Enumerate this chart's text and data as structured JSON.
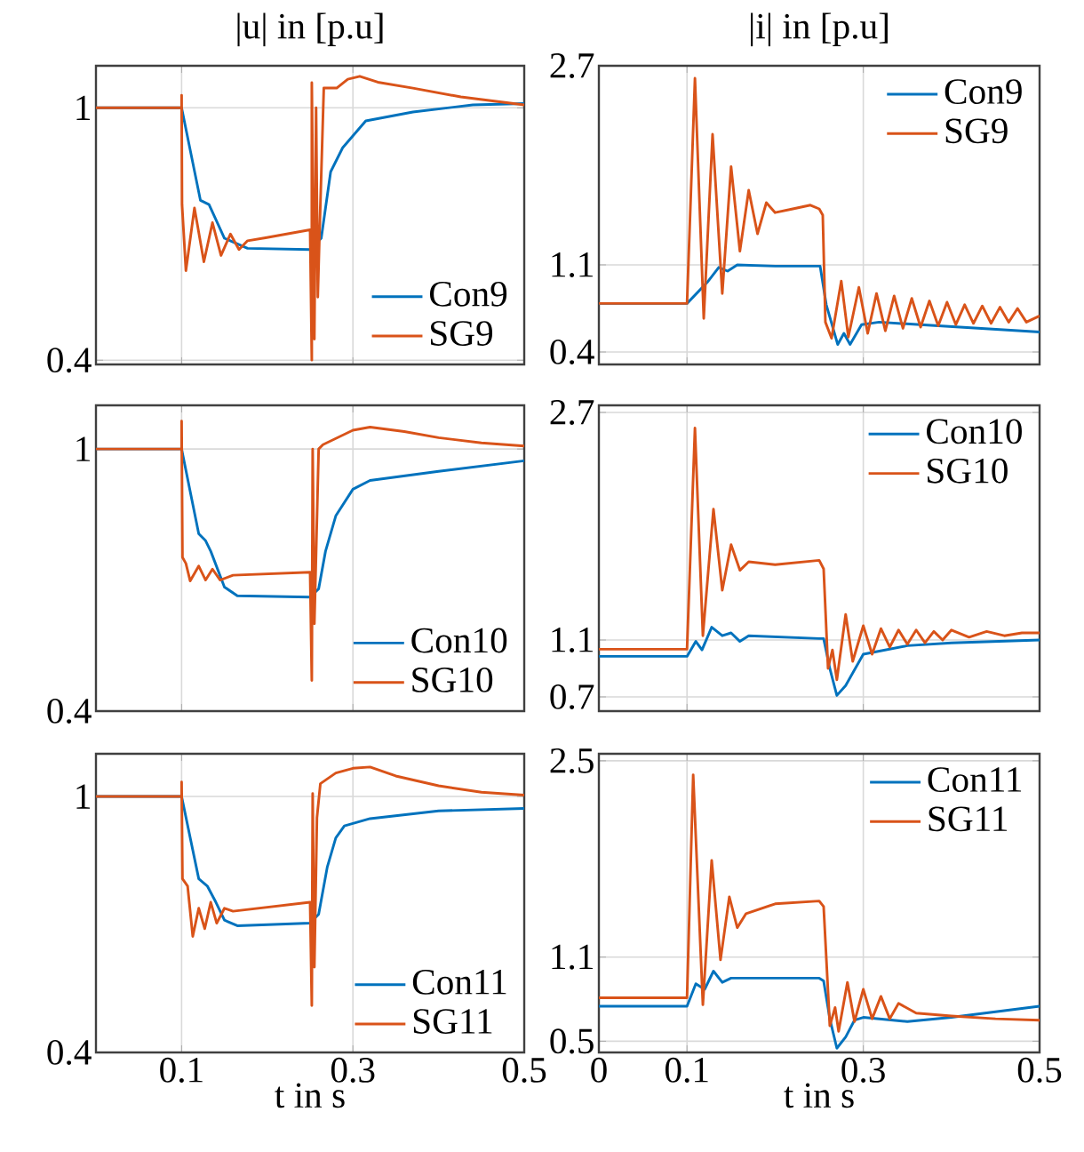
{
  "chart_data": [
    {
      "type": "line",
      "title": "|u| in [p.u]",
      "xlim": [
        0,
        0.5
      ],
      "ylim": [
        0.39,
        1.1
      ],
      "xticks": [
        0.1,
        0.3,
        0.5
      ],
      "yticks": [
        0.4,
        1
      ],
      "tick_labels": "y",
      "grid": true,
      "legend": "bottom right",
      "series": [
        {
          "name": "Con9",
          "color": "#0072bd",
          "x": [
            0,
            0.1,
            0.122,
            0.132,
            0.15,
            0.177,
            0.25,
            0.263,
            0.274,
            0.288,
            0.315,
            0.37,
            0.44,
            0.5
          ],
          "values": [
            1,
            1,
            0.78,
            0.77,
            0.69,
            0.666,
            0.663,
            0.69,
            0.848,
            0.905,
            0.969,
            0.99,
            1.007,
            1.01
          ]
        },
        {
          "name": "SG9",
          "color": "#d95319",
          "x": [
            0,
            0.1,
            0.1,
            0.1005,
            0.105,
            0.115,
            0.126,
            0.136,
            0.146,
            0.157,
            0.167,
            0.177,
            0.198,
            0.25,
            0.252,
            0.252,
            0.255,
            0.257,
            0.259,
            0.261,
            0.266,
            0.281,
            0.294,
            0.308,
            0.329,
            0.37,
            0.426,
            0.5
          ],
          "values": [
            1,
            1,
            1.03,
            0.77,
            0.613,
            0.762,
            0.634,
            0.727,
            0.649,
            0.7,
            0.663,
            0.684,
            0.691,
            0.71,
            0.4,
            1.06,
            0.45,
            1.0,
            0.55,
            0.7,
            1.047,
            1.047,
            1.068,
            1.075,
            1.061,
            1.047,
            1.026,
            1.007
          ]
        }
      ]
    },
    {
      "type": "line",
      "title": "|i| in [p.u]",
      "xlim": [
        0,
        0.5
      ],
      "ylim": [
        0.3,
        2.7
      ],
      "xticks": [
        0.1,
        0.3,
        0.5
      ],
      "yticks": [
        0.4,
        1.1,
        2.7
      ],
      "tick_labels": "y",
      "grid": true,
      "legend": "top right",
      "series": [
        {
          "name": "Con9",
          "color": "#0072bd",
          "x": [
            0,
            0.1,
            0.123,
            0.136,
            0.146,
            0.157,
            0.2,
            0.251,
            0.258,
            0.271,
            0.278,
            0.285,
            0.298,
            0.318,
            0.385,
            0.5
          ],
          "values": [
            0.79,
            0.79,
            0.96,
            1.08,
            1.05,
            1.1,
            1.09,
            1.09,
            0.78,
            0.46,
            0.55,
            0.46,
            0.62,
            0.64,
            0.61,
            0.56
          ]
        },
        {
          "name": "SG9",
          "color": "#d95319",
          "x": [
            0,
            0.1,
            0.109,
            0.119,
            0.129,
            0.14,
            0.15,
            0.16,
            0.17,
            0.18,
            0.19,
            0.2,
            0.22,
            0.24,
            0.25,
            0.254,
            0.257,
            0.264,
            0.275,
            0.283,
            0.295,
            0.305,
            0.315,
            0.325,
            0.335,
            0.345,
            0.355,
            0.365,
            0.375,
            0.385,
            0.395,
            0.405,
            0.415,
            0.425,
            0.435,
            0.445,
            0.455,
            0.465,
            0.475,
            0.485,
            0.5
          ],
          "values": [
            0.79,
            0.79,
            2.6,
            0.67,
            2.15,
            0.87,
            1.89,
            1.21,
            1.7,
            1.35,
            1.6,
            1.52,
            1.55,
            1.58,
            1.55,
            1.5,
            0.64,
            0.51,
            0.97,
            0.52,
            0.92,
            0.55,
            0.87,
            0.57,
            0.85,
            0.59,
            0.83,
            0.6,
            0.81,
            0.61,
            0.8,
            0.62,
            0.78,
            0.63,
            0.77,
            0.63,
            0.76,
            0.64,
            0.75,
            0.64,
            0.69
          ]
        }
      ]
    },
    {
      "type": "line",
      "xlim": [
        0,
        0.5
      ],
      "ylim": [
        0.4,
        1.1
      ],
      "xticks": [
        0.1,
        0.3,
        0.5
      ],
      "yticks": [
        0.4,
        1
      ],
      "tick_labels": "y",
      "grid": true,
      "legend": "bottom right",
      "series": [
        {
          "name": "Con10",
          "color": "#0072bd",
          "x": [
            0,
            0.1,
            0.12,
            0.128,
            0.134,
            0.15,
            0.165,
            0.25,
            0.26,
            0.268,
            0.28,
            0.3,
            0.32,
            0.4,
            0.5
          ],
          "values": [
            1,
            1,
            0.806,
            0.79,
            0.766,
            0.684,
            0.664,
            0.661,
            0.68,
            0.766,
            0.847,
            0.908,
            0.928,
            0.949,
            0.973
          ]
        },
        {
          "name": "SG10",
          "color": "#d95319",
          "x": [
            0,
            0.1,
            0.1,
            0.101,
            0.105,
            0.11,
            0.12,
            0.128,
            0.136,
            0.145,
            0.16,
            0.25,
            0.252,
            0.253,
            0.255,
            0.26,
            0.265,
            0.3,
            0.32,
            0.36,
            0.4,
            0.45,
            0.5
          ],
          "values": [
            1,
            1,
            1.064,
            0.752,
            0.738,
            0.698,
            0.732,
            0.7,
            0.725,
            0.7,
            0.711,
            0.718,
            0.47,
            1.0,
            0.6,
            1.0,
            1.01,
            1.043,
            1.05,
            1.04,
            1.026,
            1.014,
            1.007
          ]
        }
      ]
    },
    {
      "type": "line",
      "xlim": [
        0,
        0.5
      ],
      "ylim": [
        0.6,
        2.75
      ],
      "xticks": [
        0.1,
        0.3,
        0.5
      ],
      "yticks": [
        0.7,
        1.1,
        2.7
      ],
      "tick_labels": "y",
      "grid": true,
      "legend": "top right",
      "series": [
        {
          "name": "Con10",
          "color": "#0072bd",
          "x": [
            0,
            0.1,
            0.11,
            0.117,
            0.128,
            0.14,
            0.15,
            0.16,
            0.17,
            0.25,
            0.255,
            0.262,
            0.27,
            0.28,
            0.3,
            0.35,
            0.4,
            0.5
          ],
          "values": [
            0.985,
            0.985,
            1.09,
            1.03,
            1.19,
            1.13,
            1.15,
            1.09,
            1.13,
            1.11,
            1.11,
            0.9,
            0.71,
            0.78,
            1.0,
            1.06,
            1.08,
            1.1
          ]
        },
        {
          "name": "SG10",
          "color": "#d95319",
          "x": [
            0,
            0.1,
            0.109,
            0.118,
            0.13,
            0.14,
            0.15,
            0.16,
            0.17,
            0.2,
            0.25,
            0.255,
            0.26,
            0.265,
            0.27,
            0.28,
            0.288,
            0.3,
            0.31,
            0.32,
            0.33,
            0.34,
            0.35,
            0.36,
            0.37,
            0.38,
            0.39,
            0.4,
            0.42,
            0.44,
            0.46,
            0.48,
            0.5
          ],
          "values": [
            1.035,
            1.035,
            2.59,
            1.13,
            2.02,
            1.45,
            1.77,
            1.59,
            1.65,
            1.63,
            1.66,
            1.6,
            0.9,
            1.03,
            0.82,
            1.28,
            0.95,
            1.2,
            1.0,
            1.18,
            1.05,
            1.17,
            1.07,
            1.17,
            1.08,
            1.16,
            1.1,
            1.17,
            1.12,
            1.16,
            1.13,
            1.15,
            1.15
          ]
        }
      ]
    },
    {
      "type": "line",
      "xlabel": "t in s",
      "xlim": [
        0,
        0.5
      ],
      "ylim": [
        0.4,
        1.1
      ],
      "xticks": [
        0.1,
        0.3,
        0.5
      ],
      "yticks": [
        0.4,
        1
      ],
      "grid": true,
      "legend": "bottom right",
      "series": [
        {
          "name": "Con11",
          "color": "#0072bd",
          "x": [
            0,
            0.1,
            0.12,
            0.13,
            0.14,
            0.15,
            0.165,
            0.25,
            0.26,
            0.27,
            0.28,
            0.29,
            0.32,
            0.4,
            0.5
          ],
          "values": [
            1,
            1,
            0.807,
            0.79,
            0.752,
            0.71,
            0.697,
            0.703,
            0.724,
            0.834,
            0.903,
            0.931,
            0.948,
            0.966,
            0.972
          ]
        },
        {
          "name": "SG11",
          "color": "#d95319",
          "x": [
            0,
            0.1,
            0.1,
            0.101,
            0.107,
            0.113,
            0.12,
            0.127,
            0.134,
            0.141,
            0.15,
            0.16,
            0.25,
            0.252,
            0.253,
            0.255,
            0.258,
            0.262,
            0.28,
            0.3,
            0.32,
            0.35,
            0.4,
            0.45,
            0.5
          ],
          "values": [
            1,
            1,
            1.034,
            0.807,
            0.79,
            0.672,
            0.738,
            0.69,
            0.752,
            0.703,
            0.738,
            0.731,
            0.752,
            0.51,
            1.007,
            0.6,
            0.95,
            1.03,
            1.055,
            1.066,
            1.069,
            1.048,
            1.025,
            1.01,
            1.003
          ]
        }
      ]
    },
    {
      "type": "line",
      "xlabel": "t in s",
      "xlim": [
        0,
        0.5
      ],
      "ylim": [
        0.42,
        2.55
      ],
      "xticks": [
        0,
        0.1,
        0.3,
        0.5
      ],
      "yticks": [
        0.5,
        1.1,
        2.5
      ],
      "grid": true,
      "legend": "top right",
      "series": [
        {
          "name": "Con11",
          "color": "#0072bd",
          "x": [
            0,
            0.1,
            0.11,
            0.12,
            0.13,
            0.14,
            0.15,
            0.25,
            0.255,
            0.262,
            0.27,
            0.28,
            0.29,
            0.3,
            0.35,
            0.4,
            0.5
          ],
          "values": [
            0.75,
            0.75,
            0.91,
            0.87,
            1.0,
            0.92,
            0.95,
            0.95,
            0.93,
            0.66,
            0.45,
            0.53,
            0.65,
            0.67,
            0.64,
            0.67,
            0.75
          ]
        },
        {
          "name": "SG11",
          "color": "#d95319",
          "x": [
            0,
            0.1,
            0.107,
            0.118,
            0.128,
            0.138,
            0.148,
            0.157,
            0.167,
            0.2,
            0.25,
            0.255,
            0.262,
            0.268,
            0.272,
            0.282,
            0.29,
            0.3,
            0.31,
            0.32,
            0.33,
            0.34,
            0.36,
            0.4,
            0.45,
            0.5
          ],
          "values": [
            0.81,
            0.81,
            2.4,
            0.76,
            1.79,
            1.08,
            1.53,
            1.31,
            1.41,
            1.48,
            1.5,
            1.46,
            0.61,
            0.74,
            0.57,
            0.92,
            0.64,
            0.87,
            0.66,
            0.82,
            0.66,
            0.77,
            0.7,
            0.68,
            0.66,
            0.65
          ]
        }
      ]
    }
  ]
}
